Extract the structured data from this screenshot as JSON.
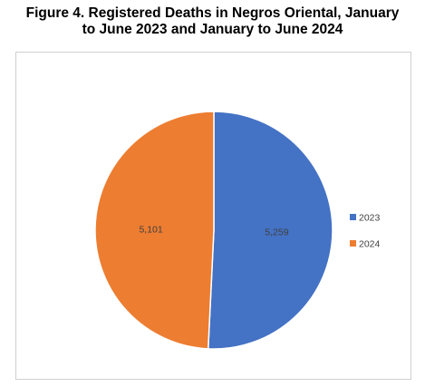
{
  "title": {
    "line1": "Figure 4.  Registered Deaths in Negros Oriental, January",
    "line2": "to June 2023 and January to June 2024"
  },
  "chart_data": {
    "type": "pie",
    "title": "Figure 4.  Registered Deaths in Negros Oriental, January to June 2023 and January to June 2024",
    "categories": [
      "2023",
      "2024"
    ],
    "values": [
      5259,
      5101
    ],
    "data_labels": [
      "5,259",
      "5,101"
    ],
    "colors": [
      "#4472C4",
      "#ED7D31"
    ],
    "legend": "right",
    "start_angle": "top, clockwise"
  }
}
